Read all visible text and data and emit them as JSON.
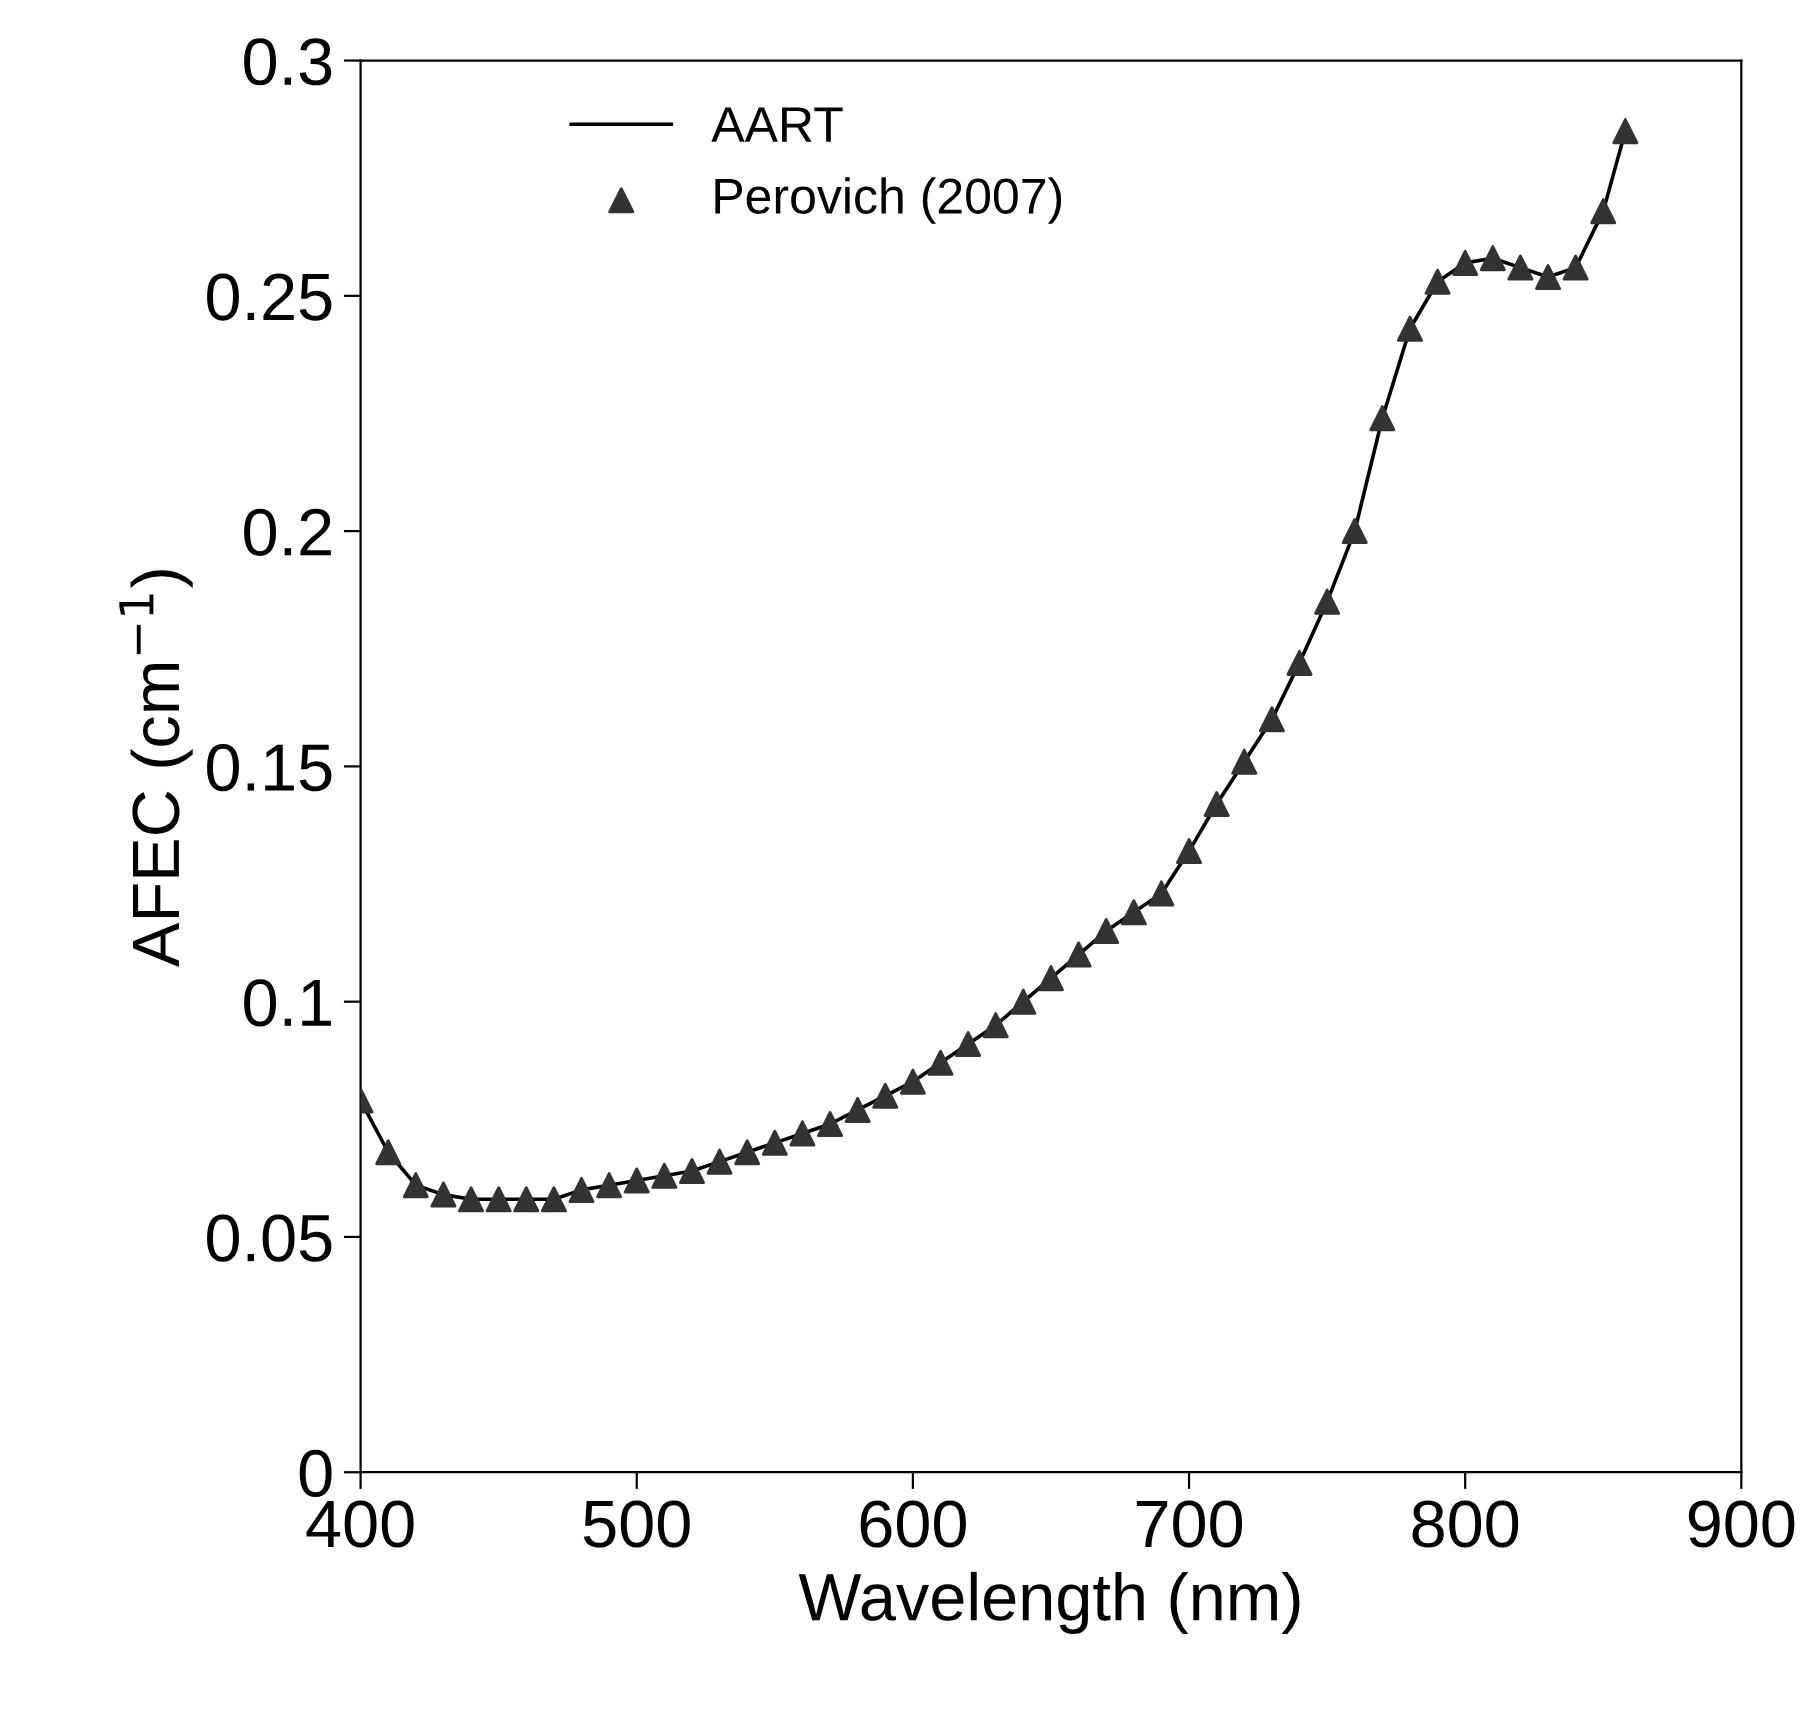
{
  "chart_data": {
    "type": "line",
    "xlabel": "Wavelength (nm)",
    "ylabel": "AFEC (cm$^{−1}$)",
    "x": [
      400,
      410,
      420,
      430,
      440,
      450,
      460,
      470,
      480,
      490,
      500,
      510,
      520,
      530,
      540,
      550,
      560,
      570,
      580,
      590,
      600,
      610,
      620,
      630,
      640,
      650,
      660,
      670,
      680,
      690,
      700,
      710,
      720,
      730,
      740,
      750,
      760,
      770,
      780,
      790,
      800,
      810,
      820,
      830,
      840,
      850,
      858
    ],
    "series": [
      {
        "name": "AART",
        "color": "#000000",
        "marker": "none",
        "line_style": "solid",
        "values": [
          0.079,
          0.068,
          0.061,
          0.059,
          0.058,
          0.058,
          0.058,
          0.058,
          0.06,
          0.061,
          0.062,
          0.063,
          0.064,
          0.066,
          0.068,
          0.07,
          0.072,
          0.074,
          0.077,
          0.08,
          0.083,
          0.087,
          0.091,
          0.095,
          0.1,
          0.105,
          0.11,
          0.115,
          0.119,
          0.123,
          0.132,
          0.142,
          0.151,
          0.16,
          0.172,
          0.185,
          0.2,
          0.224,
          0.243,
          0.253,
          0.257,
          0.258,
          0.256,
          0.254,
          0.256,
          0.268,
          0.285
        ]
      },
      {
        "name": "Perovich (2007)",
        "type": "scatter",
        "color": "#333333",
        "marker": "triangle",
        "values": [
          0.079,
          0.068,
          0.061,
          0.059,
          0.058,
          0.058,
          0.058,
          0.058,
          0.06,
          0.061,
          0.062,
          0.063,
          0.064,
          0.066,
          0.068,
          0.07,
          0.072,
          0.074,
          0.077,
          0.08,
          0.083,
          0.087,
          0.091,
          0.095,
          0.1,
          0.105,
          0.11,
          0.115,
          0.119,
          0.123,
          0.132,
          0.142,
          0.151,
          0.16,
          0.172,
          0.185,
          0.2,
          0.224,
          0.243,
          0.253,
          0.257,
          0.258,
          0.256,
          0.254,
          0.256,
          0.268,
          0.285
        ]
      }
    ],
    "xlim": [
      400,
      900
    ],
    "xticks": [
      400,
      500,
      600,
      700,
      800,
      900
    ],
    "ylim": [
      0,
      0.3
    ],
    "yticks": [
      0,
      0.05,
      0.1,
      0.15,
      0.2,
      0.25,
      0.3
    ],
    "grid": false,
    "legend": "top left"
  }
}
